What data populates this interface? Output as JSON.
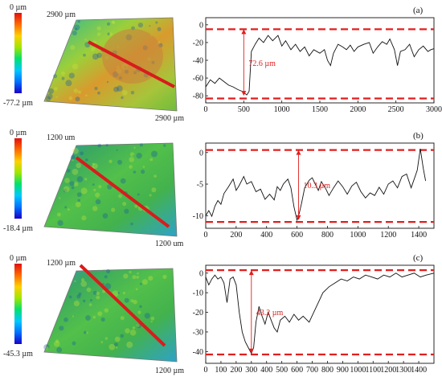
{
  "colors": {
    "profile_line": "#111111",
    "bound_line": "#e21e1e",
    "annotation": "#e21e1e",
    "section_line": "#d81c1c",
    "scale_bar": [
      "#1a00c8",
      "#0070ff",
      "#00c8ff",
      "#00e070",
      "#a0e600",
      "#ffd000",
      "#ff6a00",
      "#e01010"
    ]
  },
  "chart_data": [
    {
      "type": "line",
      "panel_label": "(a)",
      "colorbar": {
        "top_label": "0 µm",
        "bottom_label": "-77.2 µm"
      },
      "surface": {
        "dim_top": "2900 µm",
        "dim_bottom": "2900 µm",
        "palette": "orange"
      },
      "xlim": [
        0,
        3000
      ],
      "ylim": [
        -88,
        8
      ],
      "x_ticks": [
        0,
        500,
        1000,
        1500,
        2000,
        2500,
        3000
      ],
      "y_ticks": [
        0,
        -20,
        -40,
        -60,
        -80
      ],
      "upper_bound": -5,
      "lower_bound": -83,
      "annotation": {
        "text": "72.6 µm",
        "x": 500,
        "y_top": -5,
        "y_bottom": -80
      },
      "series": [
        {
          "profile": [
            [
              0,
              -70
            ],
            [
              60,
              -62
            ],
            [
              120,
              -66
            ],
            [
              180,
              -60
            ],
            [
              240,
              -64
            ],
            [
              300,
              -68
            ],
            [
              360,
              -70
            ],
            [
              420,
              -73
            ],
            [
              480,
              -75
            ],
            [
              540,
              -79
            ],
            [
              570,
              -75
            ],
            [
              600,
              -30
            ],
            [
              650,
              -22
            ],
            [
              700,
              -15
            ],
            [
              760,
              -20
            ],
            [
              820,
              -12
            ],
            [
              880,
              -18
            ],
            [
              950,
              -12
            ],
            [
              1000,
              -24
            ],
            [
              1050,
              -18
            ],
            [
              1120,
              -28
            ],
            [
              1180,
              -22
            ],
            [
              1240,
              -30
            ],
            [
              1300,
              -25
            ],
            [
              1360,
              -35
            ],
            [
              1420,
              -28
            ],
            [
              1500,
              -32
            ],
            [
              1560,
              -28
            ],
            [
              1600,
              -40
            ],
            [
              1640,
              -46
            ],
            [
              1680,
              -32
            ],
            [
              1740,
              -22
            ],
            [
              1800,
              -25
            ],
            [
              1850,
              -28
            ],
            [
              1900,
              -23
            ],
            [
              1950,
              -30
            ],
            [
              2000,
              -25
            ],
            [
              2080,
              -22
            ],
            [
              2150,
              -20
            ],
            [
              2200,
              -32
            ],
            [
              2260,
              -25
            ],
            [
              2320,
              -19
            ],
            [
              2380,
              -22
            ],
            [
              2420,
              -16
            ],
            [
              2480,
              -28
            ],
            [
              2520,
              -46
            ],
            [
              2560,
              -30
            ],
            [
              2620,
              -28
            ],
            [
              2680,
              -22
            ],
            [
              2740,
              -36
            ],
            [
              2800,
              -28
            ],
            [
              2860,
              -24
            ],
            [
              2920,
              -30
            ],
            [
              2960,
              -28
            ],
            [
              3000,
              -27
            ]
          ]
        }
      ]
    },
    {
      "type": "line",
      "panel_label": "(b)",
      "colorbar": {
        "top_label": "0 µm",
        "bottom_label": "-18.4 µm"
      },
      "surface": {
        "dim_top": "1200 um",
        "dim_bottom": "1200 um",
        "palette": "green"
      },
      "xlim": [
        0,
        1500
      ],
      "ylim": [
        -12,
        1.5
      ],
      "x_ticks": [
        0,
        200,
        400,
        600,
        800,
        1000,
        1200,
        1400
      ],
      "y_ticks": [
        0,
        -5,
        -10
      ],
      "upper_bound": 0.4,
      "lower_bound": -11,
      "annotation": {
        "text": "10.3 µm",
        "x": 610,
        "y_top": 0.4,
        "y_bottom": -10.7
      },
      "series": [
        {
          "profile": [
            [
              0,
              -10
            ],
            [
              20,
              -9.2
            ],
            [
              40,
              -10.1
            ],
            [
              60,
              -8.5
            ],
            [
              80,
              -7.6
            ],
            [
              100,
              -8.2
            ],
            [
              120,
              -6.5
            ],
            [
              150,
              -5.4
            ],
            [
              180,
              -4.2
            ],
            [
              200,
              -6.0
            ],
            [
              220,
              -5.2
            ],
            [
              250,
              -3.8
            ],
            [
              270,
              -5.0
            ],
            [
              300,
              -4.6
            ],
            [
              330,
              -6.2
            ],
            [
              360,
              -5.8
            ],
            [
              390,
              -7.4
            ],
            [
              420,
              -6.6
            ],
            [
              450,
              -7.5
            ],
            [
              470,
              -5.4
            ],
            [
              490,
              -6.0
            ],
            [
              510,
              -5.0
            ],
            [
              540,
              -4.2
            ],
            [
              560,
              -5.6
            ],
            [
              580,
              -8.6
            ],
            [
              600,
              -10.7
            ],
            [
              615,
              -9.6
            ],
            [
              630,
              -8.0
            ],
            [
              650,
              -5.6
            ],
            [
              680,
              -4.4
            ],
            [
              700,
              -4.0
            ],
            [
              720,
              -5.0
            ],
            [
              740,
              -6.0
            ],
            [
              760,
              -4.6
            ],
            [
              790,
              -5.8
            ],
            [
              810,
              -6.8
            ],
            [
              840,
              -5.6
            ],
            [
              870,
              -4.5
            ],
            [
              900,
              -5.4
            ],
            [
              930,
              -6.6
            ],
            [
              960,
              -5.3
            ],
            [
              990,
              -4.7
            ],
            [
              1020,
              -6.2
            ],
            [
              1050,
              -7.2
            ],
            [
              1080,
              -6.4
            ],
            [
              1110,
              -6.8
            ],
            [
              1140,
              -5.5
            ],
            [
              1170,
              -6.6
            ],
            [
              1200,
              -5.0
            ],
            [
              1230,
              -4.5
            ],
            [
              1260,
              -5.6
            ],
            [
              1290,
              -3.8
            ],
            [
              1320,
              -3.4
            ],
            [
              1350,
              -5.6
            ],
            [
              1370,
              -4.2
            ],
            [
              1390,
              -2.8
            ],
            [
              1410,
              0.6
            ],
            [
              1430,
              -2.5
            ],
            [
              1445,
              -4.5
            ]
          ]
        }
      ]
    },
    {
      "type": "line",
      "panel_label": "(c)",
      "colorbar": {
        "top_label": "0 µm",
        "bottom_label": "-45.3 µm"
      },
      "surface": {
        "dim_top": "1200 µm",
        "dim_bottom": "1200 µm",
        "palette": "green"
      },
      "xlim": [
        0,
        1500
      ],
      "ylim": [
        -46,
        4
      ],
      "x_ticks": [
        0,
        100,
        200,
        300,
        400,
        500,
        600,
        700,
        800,
        900,
        1000,
        1100,
        1200,
        1300,
        1400
      ],
      "y_ticks": [
        0,
        -10,
        -20,
        -30,
        -40
      ],
      "upper_bound": 1.5,
      "lower_bound": -41.5,
      "annotation": {
        "text": "43.2 µm",
        "x": 300,
        "y_top": 1.5,
        "y_bottom": -41
      },
      "series": [
        {
          "profile": [
            [
              0,
              -2
            ],
            [
              20,
              -6
            ],
            [
              40,
              -3
            ],
            [
              60,
              -1
            ],
            [
              80,
              -3
            ],
            [
              100,
              -2
            ],
            [
              120,
              -5
            ],
            [
              140,
              -15
            ],
            [
              160,
              -3
            ],
            [
              180,
              -2
            ],
            [
              200,
              -6
            ],
            [
              220,
              -20
            ],
            [
              240,
              -30
            ],
            [
              260,
              -35
            ],
            [
              280,
              -38
            ],
            [
              300,
              -41
            ],
            [
              315,
              -38
            ],
            [
              330,
              -25
            ],
            [
              350,
              -17
            ],
            [
              370,
              -22
            ],
            [
              390,
              -26
            ],
            [
              410,
              -20
            ],
            [
              430,
              -24
            ],
            [
              450,
              -28
            ],
            [
              470,
              -30
            ],
            [
              490,
              -24
            ],
            [
              520,
              -22
            ],
            [
              550,
              -25
            ],
            [
              580,
              -21
            ],
            [
              610,
              -24
            ],
            [
              640,
              -22
            ],
            [
              680,
              -25
            ],
            [
              710,
              -20
            ],
            [
              740,
              -15
            ],
            [
              770,
              -10
            ],
            [
              810,
              -7
            ],
            [
              850,
              -5
            ],
            [
              890,
              -3
            ],
            [
              930,
              -4
            ],
            [
              970,
              -2
            ],
            [
              1010,
              -3
            ],
            [
              1050,
              -1
            ],
            [
              1090,
              -2
            ],
            [
              1130,
              -3
            ],
            [
              1170,
              -1
            ],
            [
              1210,
              -2
            ],
            [
              1250,
              0
            ],
            [
              1290,
              -2
            ],
            [
              1330,
              -1
            ],
            [
              1370,
              0
            ],
            [
              1410,
              -2
            ],
            [
              1450,
              -1
            ],
            [
              1500,
              0
            ]
          ]
        }
      ]
    }
  ]
}
